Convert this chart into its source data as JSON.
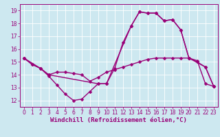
{
  "xlabel": "Windchill (Refroidissement éolien,°C)",
  "bg_color": "#cde8f0",
  "line_color": "#990077",
  "grid_color": "#ffffff",
  "xlim": [
    -0.5,
    23.5
  ],
  "ylim": [
    11.5,
    19.5
  ],
  "xticks": [
    0,
    1,
    2,
    3,
    4,
    5,
    6,
    7,
    8,
    9,
    10,
    11,
    12,
    13,
    14,
    15,
    16,
    17,
    18,
    19,
    20,
    21,
    22,
    23
  ],
  "yticks": [
    12,
    13,
    14,
    15,
    16,
    17,
    18,
    19
  ],
  "line1_x": [
    0,
    1,
    2,
    3,
    4,
    5,
    6,
    7,
    8,
    9,
    10,
    11,
    12,
    13,
    14,
    15,
    16,
    17,
    18,
    19,
    20,
    21,
    22,
    23
  ],
  "line1_y": [
    15.3,
    14.8,
    14.5,
    13.9,
    13.2,
    12.5,
    12.0,
    12.1,
    12.7,
    13.3,
    13.3,
    14.5,
    16.5,
    17.8,
    18.9,
    18.8,
    18.8,
    18.2,
    18.3,
    17.5,
    15.3,
    15.0,
    14.6,
    13.1
  ],
  "line2_x": [
    0,
    1,
    2,
    3,
    4,
    5,
    6,
    7,
    8,
    9,
    10,
    11,
    12,
    13,
    14,
    15,
    16,
    17,
    18,
    19,
    20,
    21,
    22,
    23
  ],
  "line2_y": [
    15.3,
    14.8,
    14.5,
    14.0,
    14.2,
    14.2,
    14.1,
    14.0,
    13.5,
    13.8,
    14.2,
    14.4,
    14.6,
    14.8,
    15.0,
    15.2,
    15.3,
    15.3,
    15.3,
    15.3,
    15.3,
    15.1,
    13.3,
    13.1
  ],
  "line3_x": [
    0,
    2,
    3,
    9,
    10,
    13,
    14,
    15,
    16,
    17,
    18,
    19,
    20,
    22,
    23
  ],
  "line3_y": [
    15.3,
    14.5,
    14.0,
    13.3,
    13.3,
    17.8,
    18.9,
    18.8,
    18.8,
    18.2,
    18.3,
    17.5,
    15.3,
    14.6,
    13.1
  ],
  "marker_size": 2.5,
  "line_width": 1.0,
  "tick_fontsize": 5.5,
  "xlabel_fontsize": 6.5
}
